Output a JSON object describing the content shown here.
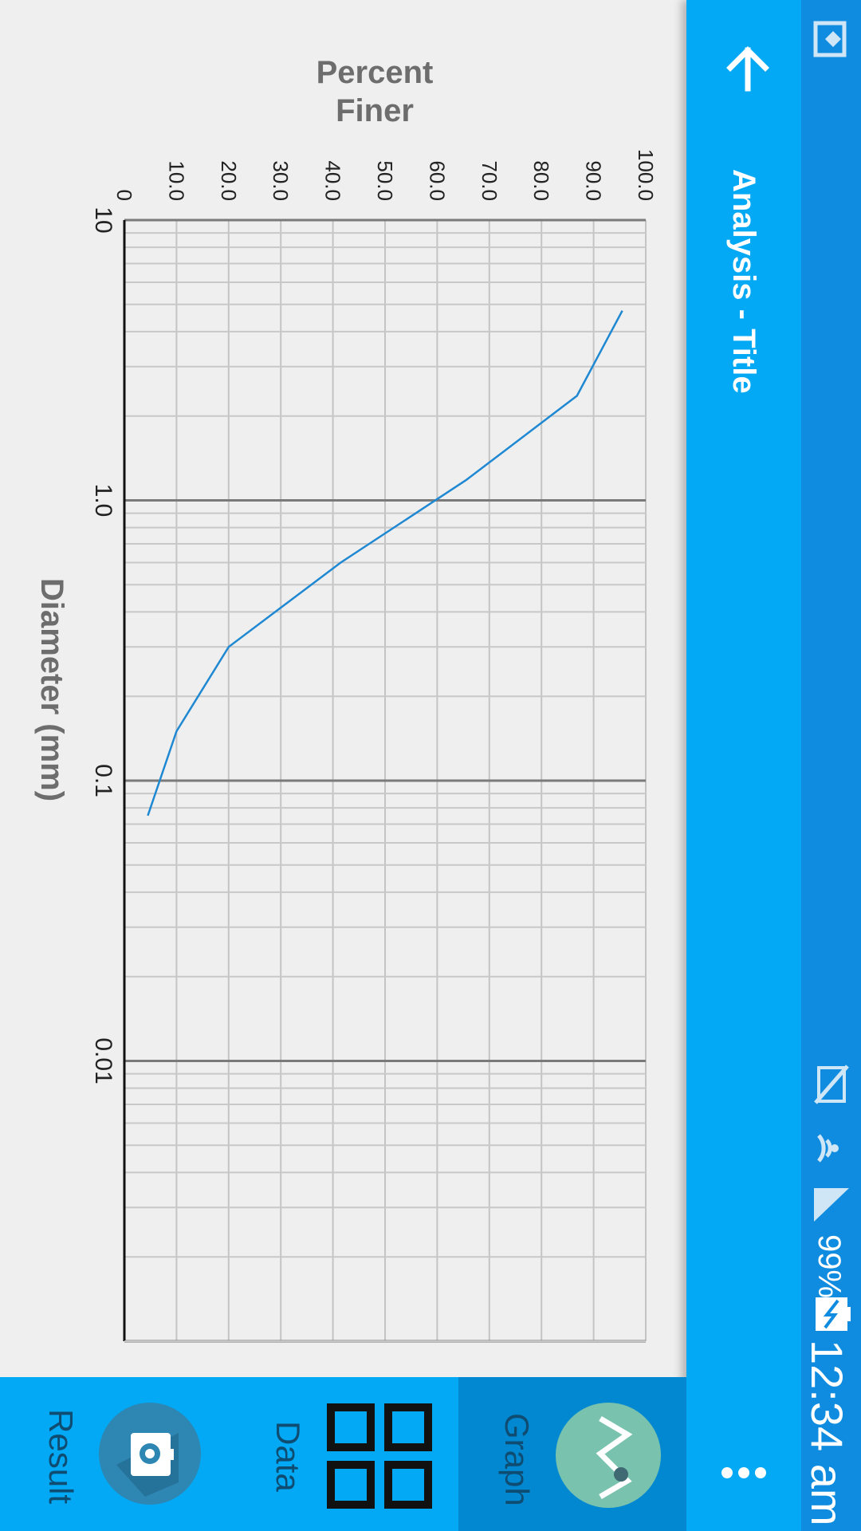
{
  "status_bar": {
    "time": "12:34 am",
    "battery": "99%",
    "icons": [
      "app-notification-icon",
      "no-sim-icon",
      "wifi-icon",
      "signal-icon",
      "battery-charging-icon"
    ]
  },
  "app_bar": {
    "title": "Analysis - Title",
    "back_icon": "arrow-back-icon",
    "menu_icon": "more-vert-icon"
  },
  "bottom_nav": {
    "tabs": [
      {
        "label": "Graph",
        "icon": "graph-icon",
        "selected": true
      },
      {
        "label": "Data",
        "icon": "grid-icon",
        "selected": false
      },
      {
        "label": "Result",
        "icon": "camera-icon",
        "selected": false
      }
    ]
  },
  "colors": {
    "app_bar": "#03a9f4",
    "status_bar": "#0f8ce0",
    "selected_tab": "#0288d1",
    "series": "#1e88d2",
    "graph_fab": "#79c3ae",
    "result_fab": "#2e86b3"
  },
  "chart_data": {
    "type": "line",
    "xlabel": "Diameter (mm)",
    "ylabel": "Percent Finer",
    "x_scale": "log",
    "x_reversed": true,
    "xlim": [
      10,
      0.001
    ],
    "ylim": [
      0,
      100
    ],
    "x_ticks": [
      "10",
      "1.0",
      "0.1",
      "0.01"
    ],
    "y_ticks": [
      "0",
      "10.0",
      "20.0",
      "30.0",
      "40.0",
      "50.0",
      "60.0",
      "70.0",
      "80.0",
      "90.0",
      "100.0"
    ],
    "grid": true,
    "series": [
      {
        "x": [
          4.75,
          2.36,
          1.18,
          0.6,
          0.3,
          0.15,
          0.075
        ],
        "y": [
          95.5,
          86.8,
          65.5,
          41.5,
          20,
          10,
          4.5
        ]
      }
    ]
  }
}
